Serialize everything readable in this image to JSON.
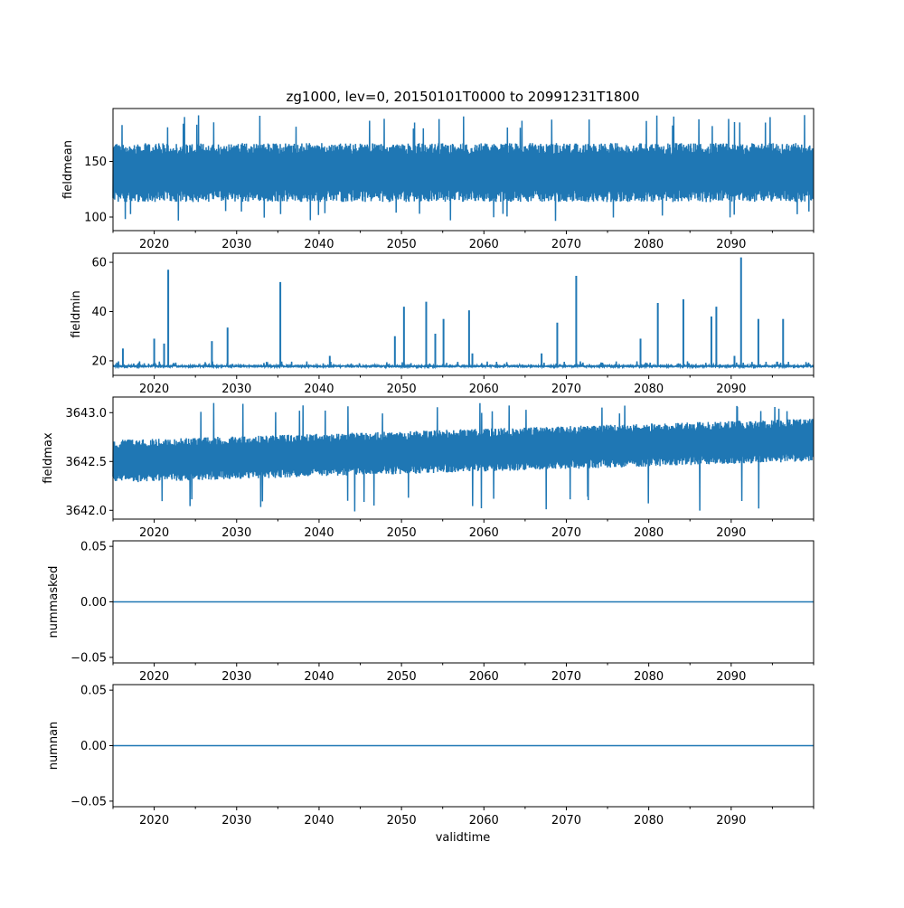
{
  "chart_data": [
    {
      "type": "line",
      "title": "zg1000, lev=0, 20150101T0000 to 20991231T1800",
      "ylabel": "fieldmean",
      "xlabel": "",
      "xlim": [
        2015.0,
        2100.0
      ],
      "ylim": [
        87.8,
        197.6
      ],
      "yticks": [
        100,
        150
      ],
      "ytick_labels": [
        "100",
        "150"
      ],
      "series": [
        {
          "name": "fieldmean",
          "color": "#1f77b4",
          "center": 140,
          "band": [
            115,
            168
          ],
          "extremes": [
            94,
            192
          ]
        }
      ]
    },
    {
      "type": "line",
      "ylabel": "fieldmin",
      "xlim": [
        2015.0,
        2100.0
      ],
      "ylim": [
        14.1,
        63.7
      ],
      "yticks": [
        20,
        40,
        60
      ],
      "ytick_labels": [
        "20",
        "40",
        "60"
      ],
      "series": [
        {
          "name": "fieldmin",
          "color": "#1f77b4",
          "baseline": 17.8,
          "spikes": [
            [
              2016.2,
              25
            ],
            [
              2020.0,
              29
            ],
            [
              2021.2,
              27
            ],
            [
              2021.7,
              57
            ],
            [
              2027.0,
              28
            ],
            [
              2028.9,
              33.5
            ],
            [
              2035.3,
              52
            ],
            [
              2041.3,
              22
            ],
            [
              2049.2,
              30
            ],
            [
              2050.3,
              42
            ],
            [
              2053.0,
              44
            ],
            [
              2054.1,
              31
            ],
            [
              2055.1,
              37
            ],
            [
              2058.2,
              40.5
            ],
            [
              2058.6,
              23
            ],
            [
              2067.0,
              23
            ],
            [
              2068.9,
              35.5
            ],
            [
              2071.2,
              54.5
            ],
            [
              2079.0,
              29
            ],
            [
              2081.1,
              43.5
            ],
            [
              2084.2,
              45
            ],
            [
              2087.6,
              38
            ],
            [
              2088.2,
              42
            ],
            [
              2090.4,
              22
            ],
            [
              2091.2,
              62
            ],
            [
              2093.3,
              37
            ],
            [
              2096.3,
              37
            ]
          ]
        }
      ]
    },
    {
      "type": "line",
      "ylabel": "fieldmax",
      "xlim": [
        2015.0,
        2100.0
      ],
      "ylim": [
        3641.91,
        3643.16
      ],
      "yticks": [
        3642.0,
        3642.5,
        3643.0
      ],
      "ytick_labels": [
        "3642.0",
        "3642.5",
        "3643.0"
      ],
      "series": [
        {
          "name": "fieldmax",
          "color": "#1f77b4",
          "center_start": 3642.5,
          "center_end": 3642.72,
          "band": 0.22,
          "extremes": [
            3641.98,
            3643.1
          ]
        }
      ]
    },
    {
      "type": "line",
      "ylabel": "nummasked",
      "xlim": [
        2015.0,
        2100.0
      ],
      "ylim": [
        -0.055,
        0.055
      ],
      "yticks": [
        -0.05,
        0.0,
        0.05
      ],
      "ytick_labels": [
        "−0.05",
        "0.00",
        "0.05"
      ],
      "series": [
        {
          "name": "nummasked",
          "color": "#1f77b4",
          "constant": 0
        }
      ]
    },
    {
      "type": "line",
      "ylabel": "numnan",
      "xlabel": "validtime",
      "xlim": [
        2015.0,
        2100.0
      ],
      "ylim": [
        -0.055,
        0.055
      ],
      "yticks": [
        -0.05,
        0.0,
        0.05
      ],
      "ytick_labels": [
        "−0.05",
        "0.00",
        "0.05"
      ],
      "series": [
        {
          "name": "numnan",
          "color": "#1f77b4",
          "constant": 0
        }
      ]
    }
  ],
  "xticks": [
    2020,
    2030,
    2040,
    2050,
    2060,
    2070,
    2080,
    2090
  ],
  "xtick_labels": [
    "2020",
    "2030",
    "2040",
    "2050",
    "2060",
    "2070",
    "2080",
    "2090"
  ],
  "minor_xticks": [
    2015,
    2025,
    2035,
    2045,
    2055,
    2065,
    2075,
    2085,
    2095,
    2100
  ]
}
